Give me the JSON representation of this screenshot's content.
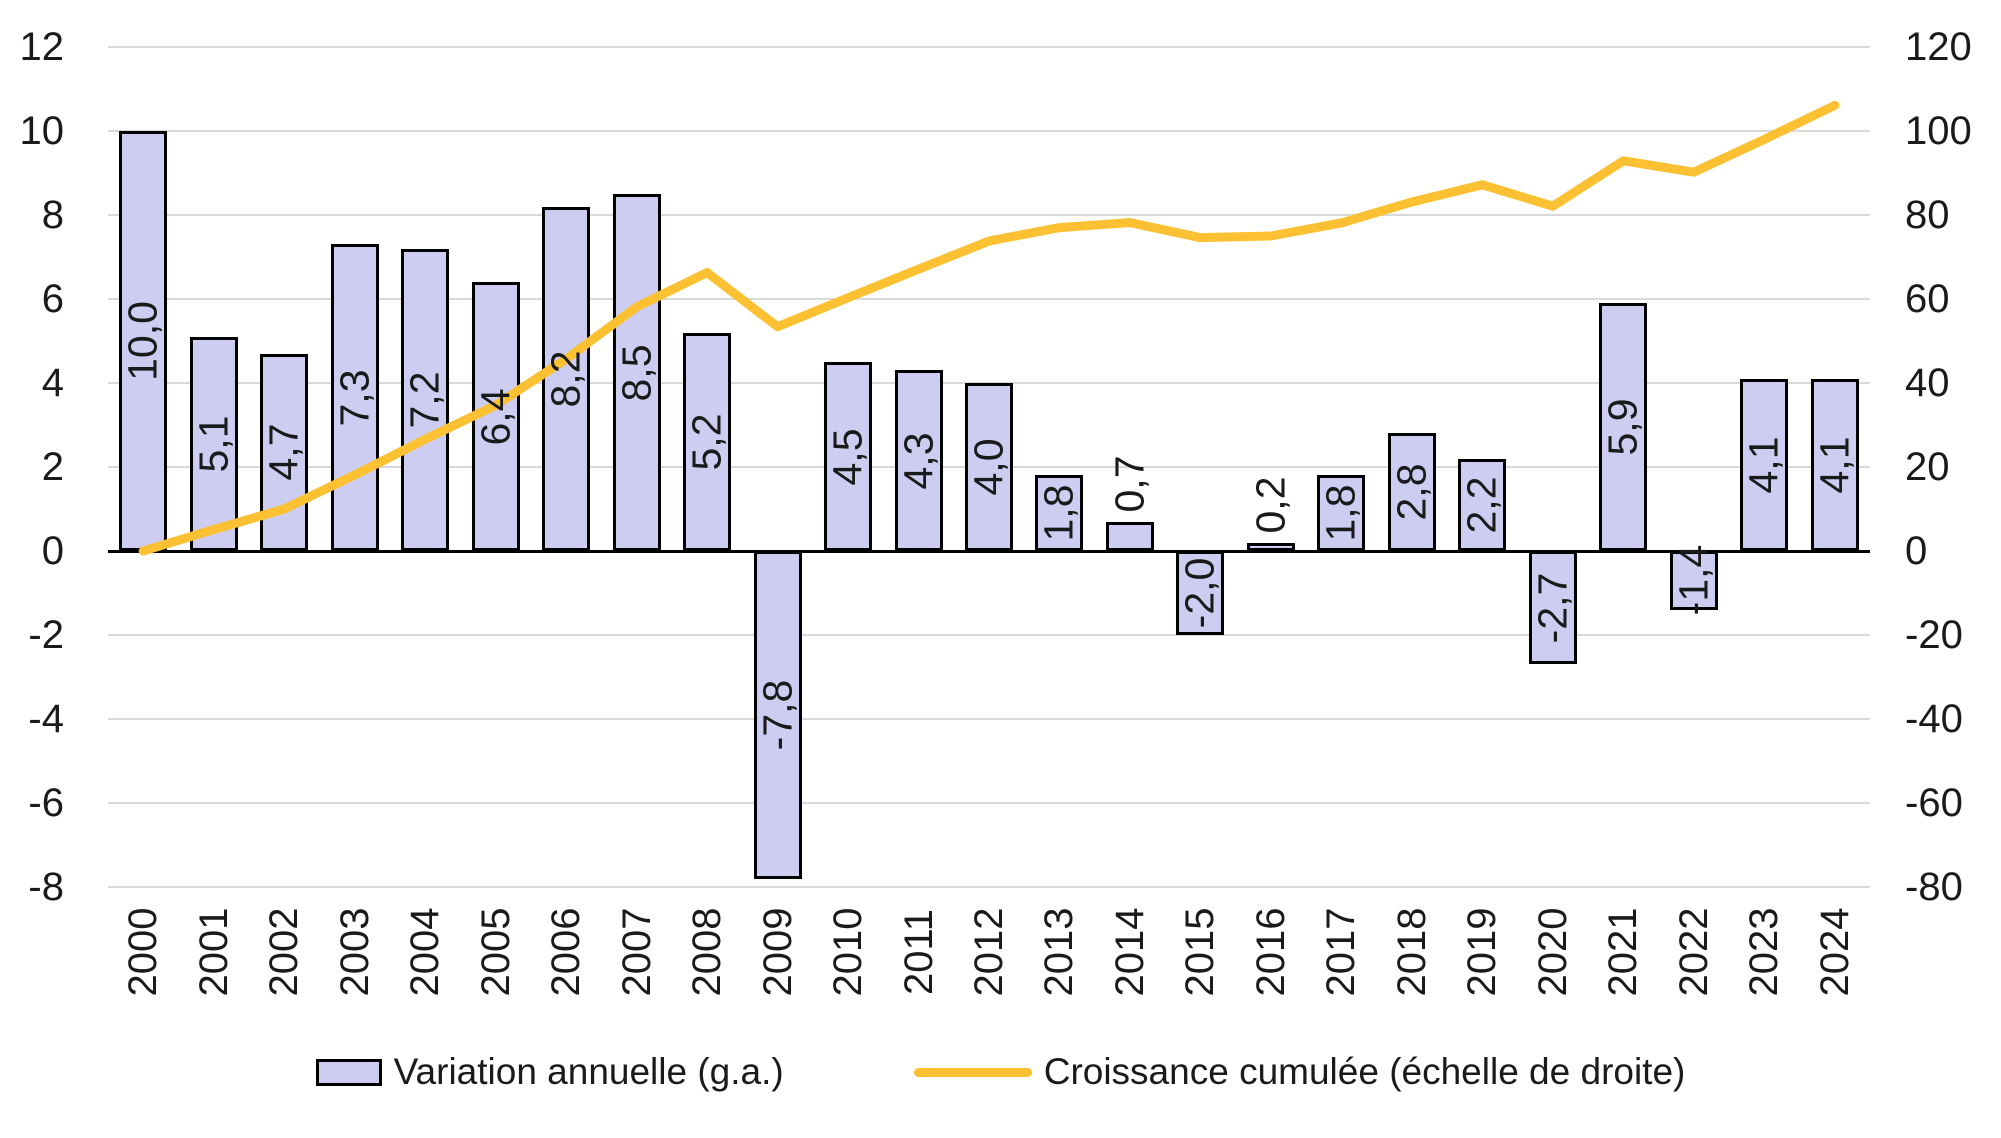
{
  "chart_data": {
    "type": "bar+line",
    "title": "",
    "categories": [
      "2000",
      "2001",
      "2002",
      "2003",
      "2004",
      "2005",
      "2006",
      "2007",
      "2008",
      "2009",
      "2010",
      "2011",
      "2012",
      "2013",
      "2014",
      "2015",
      "2016",
      "2017",
      "2018",
      "2019",
      "2020",
      "2021",
      "2022",
      "2023",
      "2024"
    ],
    "series": [
      {
        "name": "Variation annuelle (g.a.)",
        "type": "bar",
        "axis": "left",
        "values": [
          10.0,
          5.1,
          4.7,
          7.3,
          7.2,
          6.4,
          8.2,
          8.5,
          5.2,
          -7.8,
          4.5,
          4.3,
          4.0,
          1.8,
          0.7,
          -2.0,
          0.2,
          1.8,
          2.8,
          2.2,
          -2.7,
          5.9,
          -1.4,
          4.1,
          4.1
        ],
        "labels": [
          "10,0",
          "5,1",
          "4,7",
          "7,3",
          "7,2",
          "6,4",
          "8,2",
          "8,5",
          "5,2",
          "-7,8",
          "4,5",
          "4,3",
          "4,0",
          "1,8",
          "0,7",
          "-2,0",
          "0,2",
          "1,8",
          "2,8",
          "2,2",
          "-2,7",
          "5,9",
          "-1,4",
          "4,1",
          "4,1"
        ]
      },
      {
        "name": "Croissance cumulée (échelle de droite)",
        "type": "line",
        "axis": "right",
        "values": [
          0,
          5.1,
          10.0,
          18.1,
          26.6,
          34.7,
          45.7,
          58.1,
          66.3,
          53.4,
          60.3,
          67.1,
          73.8,
          77.0,
          78.2,
          74.6,
          75.0,
          78.1,
          83.1,
          87.2,
          82.1,
          92.9,
          90.2,
          98.0,
          106.1
        ]
      }
    ],
    "left_axis": {
      "min": -8,
      "max": 12,
      "ticks": [
        12,
        10,
        8,
        6,
        4,
        2,
        0,
        -2,
        -4,
        -6,
        -8
      ]
    },
    "right_axis": {
      "min": -80,
      "max": 120,
      "ticks": [
        120,
        100,
        80,
        60,
        40,
        20,
        0,
        -20,
        -40,
        -60,
        -80
      ]
    },
    "grid": true,
    "legend_position": "bottom",
    "colors": {
      "bar_fill": "#cdcdf1",
      "bar_border": "#000000",
      "line": "#fbc132",
      "gridline": "#d9d9d9",
      "zero_line": "#000000",
      "text": "#1a1a1a"
    }
  },
  "legend": {
    "bar_label": "Variation annuelle (g.a.)",
    "line_label": "Croissance cumulée (échelle de droite)"
  }
}
